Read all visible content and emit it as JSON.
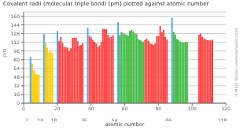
{
  "chart_data": {
    "type": "bar",
    "title": "Covalent radii (molecular triple bond) [pm] plotted against atomic number",
    "xlabel": "atomic number",
    "ylabel": "pm",
    "x": [
      5,
      6,
      7,
      8,
      9,
      13,
      14,
      15,
      16,
      17,
      4,
      12,
      20,
      38,
      56,
      88,
      21,
      22,
      23,
      24,
      25,
      26,
      27,
      28,
      29,
      30,
      31,
      32,
      33,
      34,
      35,
      39,
      40,
      41,
      42,
      43,
      44,
      45,
      46,
      47,
      48,
      49,
      50,
      51,
      52,
      53,
      72,
      73,
      74,
      75,
      76,
      77,
      78,
      79,
      80,
      81,
      82,
      83,
      84,
      85,
      104,
      105,
      106,
      107,
      108,
      109,
      110,
      111,
      112,
      57,
      58,
      59,
      60,
      61,
      62,
      63,
      64,
      65,
      66,
      67,
      68,
      69,
      70,
      71,
      89,
      90,
      91,
      92,
      93,
      94,
      95,
      96,
      97
    ],
    "values": [
      73,
      60,
      54,
      53,
      53,
      111,
      102,
      94,
      95,
      93,
      85,
      127,
      133,
      139,
      149,
      157,
      114,
      122,
      111,
      103,
      103,
      102,
      96,
      101,
      120,
      120,
      121,
      114,
      106,
      107,
      110,
      124,
      121,
      116,
      113,
      110,
      103,
      106,
      112,
      137,
      136,
      136,
      126,
      121,
      122,
      125,
      116,
      119,
      115,
      110,
      109,
      107,
      110,
      123,
      124,
      142,
      130,
      135,
      122,
      117,
      126,
      128,
      122,
      119,
      117,
      116,
      116,
      115,
      117,
      125,
      131,
      128,
      127,
      126,
      124,
      133,
      135,
      132,
      128,
      127,
      118,
      116,
      114,
      113,
      131,
      126,
      118,
      116,
      113,
      112,
      111,
      113,
      112
    ],
    "colors": [
      "#ffcc00",
      "#ffcc00",
      "#ffcc00",
      "#ffcc00",
      "#ffcc00",
      "#ffcc00",
      "#ffcc00",
      "#ffcc00",
      "#ffcc00",
      "#ffcc00",
      "#4da6ff",
      "#4da6ff",
      "#4da6ff",
      "#4da6ff",
      "#4da6ff",
      "#4da6ff",
      "#ff4444",
      "#ff4444",
      "#ff4444",
      "#ff4444",
      "#ff4444",
      "#ff4444",
      "#ff4444",
      "#ff4444",
      "#ff4444",
      "#ff4444",
      "#ff4444",
      "#ff4444",
      "#ff4444",
      "#ff4444",
      "#ff4444",
      "#ff4444",
      "#ff4444",
      "#ff4444",
      "#ff4444",
      "#ff4444",
      "#ff4444",
      "#ff4444",
      "#ff4444",
      "#ff4444",
      "#ff4444",
      "#ff4444",
      "#ff4444",
      "#ff4444",
      "#ff4444",
      "#ff4444",
      "#ff4444",
      "#ff4444",
      "#ff4444",
      "#ff4444",
      "#ff4444",
      "#ff4444",
      "#ff4444",
      "#ff4444",
      "#ff4444",
      "#ff4444",
      "#ff4444",
      "#ff4444",
      "#ff4444",
      "#ff4444",
      "#ff4444",
      "#ff4444",
      "#ff4444",
      "#ff4444",
      "#ff4444",
      "#ff4444",
      "#ff4444",
      "#ff4444",
      "#ff4444",
      "#44bb44",
      "#44bb44",
      "#44bb44",
      "#44bb44",
      "#44bb44",
      "#44bb44",
      "#44bb44",
      "#44bb44",
      "#44bb44",
      "#44bb44",
      "#44bb44",
      "#44bb44",
      "#44bb44",
      "#44bb44",
      "#44bb44",
      "#44bb44",
      "#44bb44",
      "#44bb44",
      "#44bb44",
      "#44bb44",
      "#44bb44",
      "#44bb44",
      "#44bb44",
      "#44bb44"
    ],
    "xlim": [
      0,
      120
    ],
    "xticks": [
      0,
      20,
      40,
      60,
      80,
      100,
      120
    ],
    "x2lim": [
      0,
      120
    ],
    "x2ticks": [
      2,
      10,
      18,
      36,
      54,
      86,
      118
    ],
    "ylim": [
      0,
      168
    ],
    "yticks": [
      0,
      16,
      32,
      48,
      64,
      80,
      96,
      112,
      128,
      144,
      160
    ],
    "grid": true,
    "annotations": [
      "© Mark Winter (webelements.com)"
    ]
  }
}
